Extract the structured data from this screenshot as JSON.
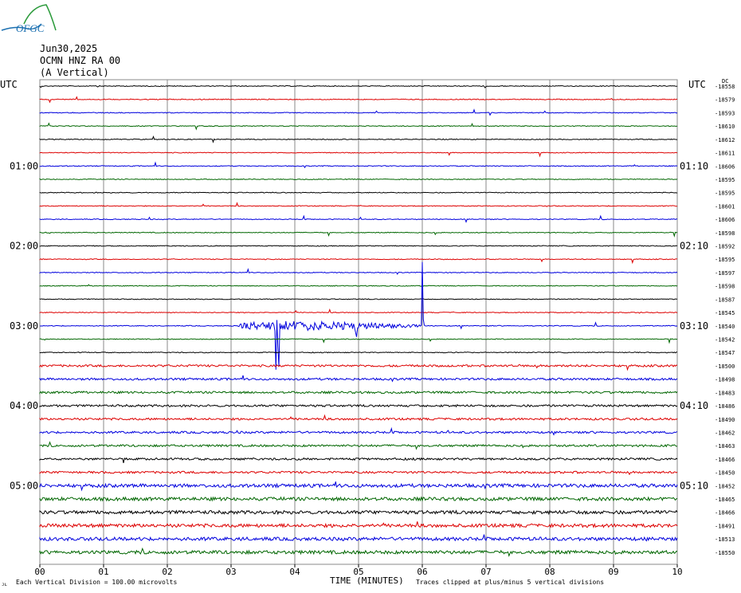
{
  "header": {
    "logo_text": "OFGC",
    "date": "Jun30,2025",
    "station": "OCMN HNZ RA 00",
    "component": "(A Vertical)"
  },
  "footer": {
    "left_mark": "ᴊʟ",
    "division_note": "Each Vertical Division =  100.00 microvolts",
    "clip_note": "Traces clipped at plus/minus 5 vertical divisions"
  },
  "chart_data": {
    "type": "line",
    "title": "",
    "xlabel": "TIME (MINUTES)",
    "xlim": [
      0,
      10
    ],
    "x_ticks": [
      "00",
      "01",
      "02",
      "03",
      "04",
      "05",
      "06",
      "07",
      "08",
      "09",
      "10"
    ],
    "left_axis_title": "UTC",
    "right_axis_title": "UTC",
    "left_time_labels": [
      {
        "row": 6,
        "label": "01:00"
      },
      {
        "row": 12,
        "label": "02:00"
      },
      {
        "row": 18,
        "label": "03:00"
      },
      {
        "row": 24,
        "label": "04:00"
      },
      {
        "row": 30,
        "label": "05:00"
      }
    ],
    "right_time_labels": [
      {
        "row": 6,
        "label": "01:10"
      },
      {
        "row": 12,
        "label": "02:10"
      },
      {
        "row": 18,
        "label": "03:10"
      },
      {
        "row": 24,
        "label": "04:10"
      },
      {
        "row": 30,
        "label": "05:10"
      }
    ],
    "top_right_tag": "DC",
    "trace_colors": [
      "#000000",
      "#dd0000",
      "#0000dd",
      "#006600"
    ],
    "grid": true,
    "traces": [
      {
        "dc": "-18558"
      },
      {
        "dc": "-18579"
      },
      {
        "dc": "-18593"
      },
      {
        "dc": "-18610"
      },
      {
        "dc": "-18612"
      },
      {
        "dc": "-18611"
      },
      {
        "dc": "-18606"
      },
      {
        "dc": "-18595"
      },
      {
        "dc": "-18595"
      },
      {
        "dc": "-18601"
      },
      {
        "dc": "-18606"
      },
      {
        "dc": "-18598"
      },
      {
        "dc": "-18592"
      },
      {
        "dc": "-18595"
      },
      {
        "dc": "-18597"
      },
      {
        "dc": "-18598"
      },
      {
        "dc": "-18587"
      },
      {
        "dc": "-18545"
      },
      {
        "dc": "-18540"
      },
      {
        "dc": "-18542"
      },
      {
        "dc": "-18547"
      },
      {
        "dc": "-18500"
      },
      {
        "dc": "-18498"
      },
      {
        "dc": "-18483"
      },
      {
        "dc": "-18486"
      },
      {
        "dc": "-18490"
      },
      {
        "dc": "-18462"
      },
      {
        "dc": "-18463"
      },
      {
        "dc": "-18466"
      },
      {
        "dc": "-18450"
      },
      {
        "dc": "-18452"
      },
      {
        "dc": "-18465"
      },
      {
        "dc": "-18466"
      },
      {
        "dc": "-18491"
      },
      {
        "dc": "-18513"
      },
      {
        "dc": "-18550"
      }
    ],
    "events": [
      {
        "trace": 18,
        "minute_start": 3.1,
        "minute_end": 6.05,
        "amplitude": "large"
      },
      {
        "trace": 18,
        "minute_start": 6.0,
        "minute_end": 6.02,
        "amplitude": "spike"
      }
    ]
  }
}
